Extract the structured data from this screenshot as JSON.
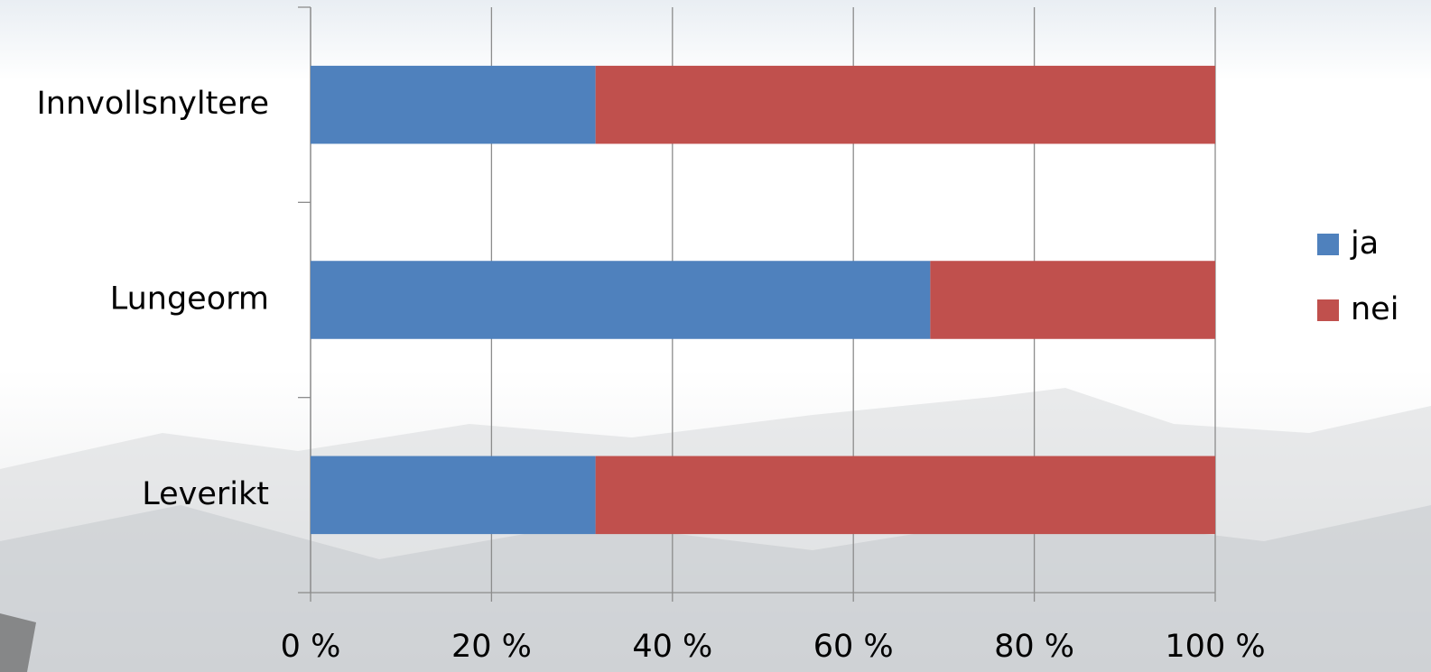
{
  "chart_data": {
    "type": "stacked-barh",
    "categories": [
      "Innvollsnyltere",
      "Lungeorm",
      "Leverikt"
    ],
    "series": [
      {
        "name": "ja",
        "color": "#4f81bd",
        "values": [
          31.5,
          68.5,
          31.5
        ]
      },
      {
        "name": "nei",
        "color": "#c0504d",
        "values": [
          68.5,
          31.5,
          68.5
        ]
      }
    ],
    "xlim": [
      0,
      100
    ],
    "xticks": [
      {
        "value": 0,
        "label": "0 %"
      },
      {
        "value": 20,
        "label": "20 %"
      },
      {
        "value": 40,
        "label": "40 %"
      },
      {
        "value": 60,
        "label": "60 %"
      },
      {
        "value": 80,
        "label": "80 %"
      },
      {
        "value": 100,
        "label": "100 %"
      }
    ],
    "grid": true,
    "legend": "right"
  }
}
